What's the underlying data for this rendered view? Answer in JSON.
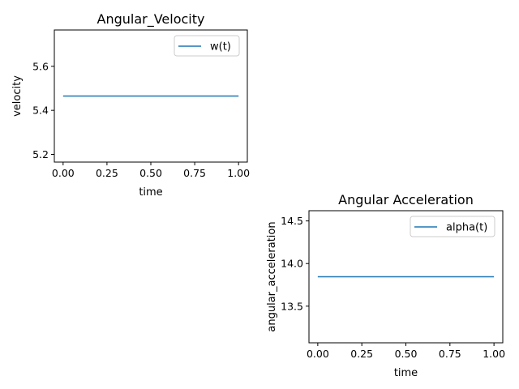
{
  "chart_data": [
    {
      "type": "line",
      "title": "Angular_Velocity",
      "xlabel": "time",
      "ylabel": "velocity",
      "xlim": [
        -0.05,
        1.05
      ],
      "ylim": [
        5.165,
        5.765
      ],
      "xticks": [
        0.0,
        0.25,
        0.5,
        0.75,
        1.0
      ],
      "xtick_labels": [
        "0.00",
        "0.25",
        "0.50",
        "0.75",
        "1.00"
      ],
      "yticks": [
        5.2,
        5.4,
        5.6
      ],
      "ytick_labels": [
        "5.2",
        "5.4",
        "5.6"
      ],
      "grid": false,
      "legend_position": "upper right",
      "series": [
        {
          "name": "w(t)",
          "color": "#1f77b4",
          "x": [
            0.0,
            1.0
          ],
          "y": [
            5.465,
            5.465
          ]
        }
      ]
    },
    {
      "type": "line",
      "title": "Angular Acceleration",
      "xlabel": "time",
      "ylabel": "angular_acceleration",
      "xlim": [
        -0.05,
        1.05
      ],
      "ylim": [
        13.07,
        14.62
      ],
      "xticks": [
        0.0,
        0.25,
        0.5,
        0.75,
        1.0
      ],
      "xtick_labels": [
        "0.00",
        "0.25",
        "0.50",
        "0.75",
        "1.00"
      ],
      "yticks": [
        13.5,
        14.0,
        14.5
      ],
      "ytick_labels": [
        "13.5",
        "14.0",
        "14.5"
      ],
      "grid": false,
      "legend_position": "upper right",
      "series": [
        {
          "name": "alpha(t)",
          "color": "#1f77b4",
          "x": [
            0.0,
            1.0
          ],
          "y": [
            13.845,
            13.845
          ]
        }
      ]
    }
  ]
}
